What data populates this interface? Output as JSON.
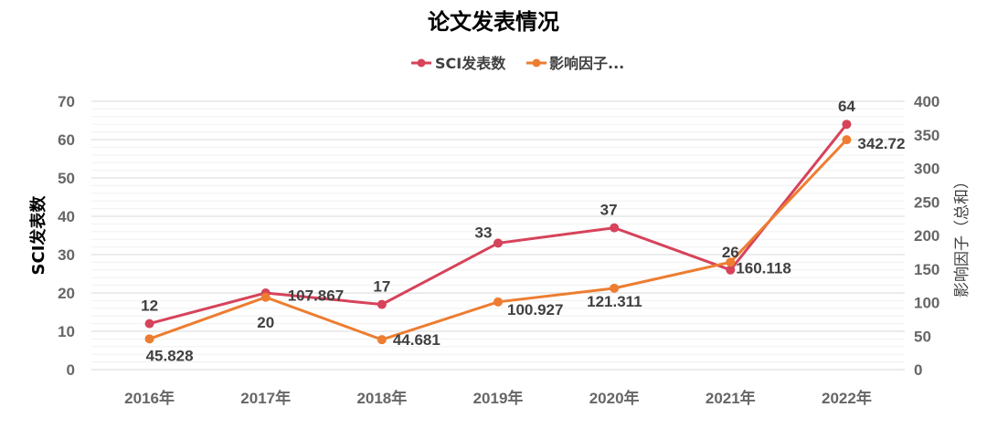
{
  "chart_data": {
    "type": "line",
    "title": "论文发表情况",
    "categories": [
      "2016年",
      "2017年",
      "2018年",
      "2019年",
      "2020年",
      "2021年",
      "2022年"
    ],
    "series": [
      {
        "name": "SCI发表数",
        "axis": "left",
        "color": "#d6435a",
        "values": [
          12,
          20,
          17,
          33,
          37,
          26,
          64
        ],
        "labels": [
          "12",
          "20",
          "17",
          "33",
          "37",
          "26",
          "64"
        ]
      },
      {
        "name": "影响因子...",
        "axis": "right",
        "color": "#ed7d31",
        "values": [
          45.828,
          107.867,
          44.681,
          100.927,
          121.311,
          160.118,
          342.72
        ],
        "labels": [
          "45.828",
          "107.867",
          "44.681",
          "100.927",
          "121.311",
          "160.118",
          "342.72"
        ]
      }
    ],
    "ylabel": "SCI发表数",
    "y2label": "影响因子（总和）",
    "ylim": [
      0,
      70
    ],
    "y2lim": [
      0,
      400
    ],
    "yticks": [
      "0",
      "10",
      "20",
      "30",
      "40",
      "50",
      "60",
      "70"
    ],
    "y2ticks": [
      "0",
      "50",
      "100",
      "150",
      "200",
      "250",
      "300",
      "350",
      "400"
    ],
    "grid": true,
    "legend": "top"
  }
}
